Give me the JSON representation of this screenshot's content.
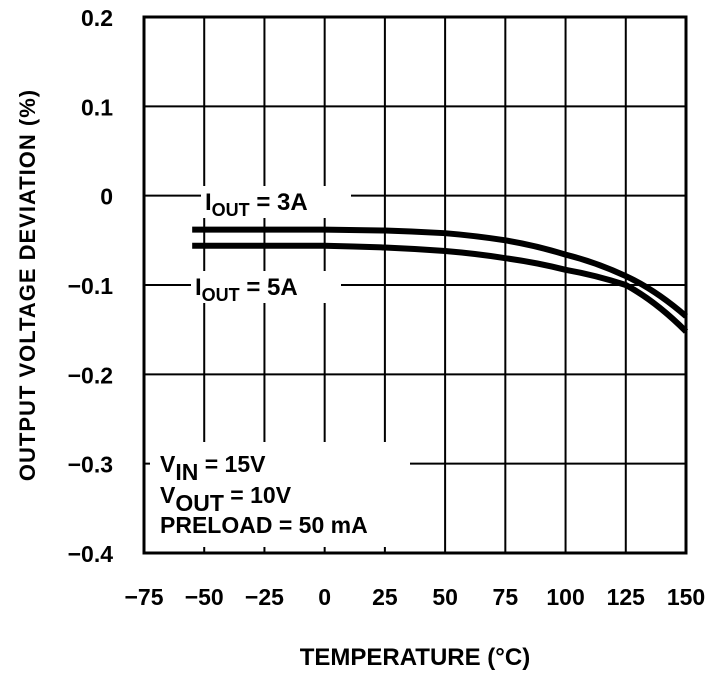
{
  "chart_data": {
    "type": "line",
    "title": "",
    "xlabel": "TEMPERATURE (°C)",
    "ylabel": "OUTPUT VOLTAGE DEVIATION (%)",
    "xlim": [
      -75,
      150
    ],
    "ylim": [
      -0.4,
      0.2
    ],
    "x_ticks": [
      -75,
      -50,
      -25,
      0,
      25,
      50,
      75,
      100,
      125,
      150
    ],
    "x_tick_labels": [
      "−75",
      "−50",
      "−25",
      "0",
      "25",
      "50",
      "75",
      "100",
      "125",
      "150"
    ],
    "y_ticks": [
      0.2,
      0.1,
      0,
      -0.1,
      -0.2,
      -0.3,
      -0.4
    ],
    "y_tick_labels": [
      "0.2",
      "0.1",
      "0",
      "−0.1",
      "−0.2",
      "−0.3",
      "−0.4"
    ],
    "grid": true,
    "series": [
      {
        "name": "IOUT = 3A",
        "label_main": "I",
        "label_sub": "OUT",
        "label_rest": " =  3A",
        "x": [
          -55,
          -25,
          0,
          25,
          50,
          75,
          100,
          125,
          150
        ],
        "y": [
          -0.038,
          -0.038,
          -0.038,
          -0.039,
          -0.042,
          -0.05,
          -0.066,
          -0.09,
          -0.135
        ]
      },
      {
        "name": "IOUT = 5A",
        "label_main": "I",
        "label_sub": "OUT",
        "label_rest": " =  5A",
        "x": [
          -55,
          -25,
          0,
          25,
          50,
          75,
          100,
          125,
          150
        ],
        "y": [
          -0.056,
          -0.056,
          -0.056,
          -0.058,
          -0.062,
          -0.07,
          -0.083,
          -0.1,
          -0.152
        ]
      }
    ],
    "annotations": [
      {
        "main": "V",
        "sub": "IN",
        "rest": " = 15V"
      },
      {
        "main": "V",
        "sub": "OUT",
        "rest": " = 10V"
      },
      {
        "main": "PRELOAD = 50 mA",
        "sub": "",
        "rest": ""
      }
    ]
  }
}
